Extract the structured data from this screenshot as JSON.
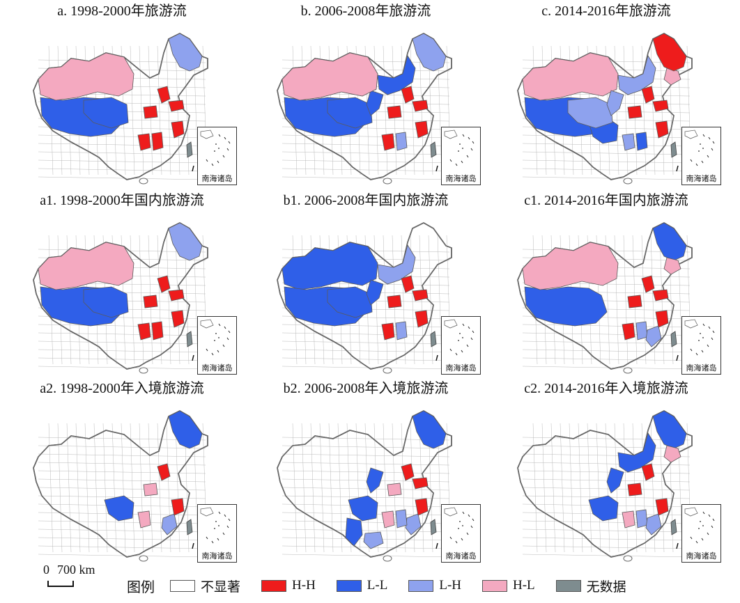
{
  "colors": {
    "not_significant": "#ffffff",
    "HH": "#ee1c1c",
    "LL": "#2f5fe8",
    "LH": "#8ea2ee",
    "HL": "#f4a9c0",
    "no_data": "#7e8c8f",
    "boundary": "#666666"
  },
  "panels": [
    {
      "title": "a. 1998-2000年旅游流",
      "pattern": "a"
    },
    {
      "title": "b. 2006-2008年旅游流",
      "pattern": "b"
    },
    {
      "title": "c. 2014-2016年旅游流",
      "pattern": "c"
    },
    {
      "title": "a1. 1998-2000年国内旅游流",
      "pattern": "a1"
    },
    {
      "title": "b1. 2006-2008年国内旅游流",
      "pattern": "b1"
    },
    {
      "title": "c1. 2014-2016年国内旅游流",
      "pattern": "c1"
    },
    {
      "title": "a2. 1998-2000年入境旅游流",
      "pattern": "a2"
    },
    {
      "title": "b2. 2006-2008年入境旅游流",
      "pattern": "b2"
    },
    {
      "title": "c2. 2014-2016年入境旅游流",
      "pattern": "c2"
    }
  ],
  "inset_label": "南海诸岛",
  "scale": {
    "zero": "0",
    "value": "700 km"
  },
  "legend": {
    "title": "图例",
    "items": [
      {
        "label": "不显著",
        "color_key": "not_significant"
      },
      {
        "label": "H-H",
        "color_key": "HH"
      },
      {
        "label": "L-L",
        "color_key": "LL"
      },
      {
        "label": "L-H",
        "color_key": "LH"
      },
      {
        "label": "H-L",
        "color_key": "HL"
      },
      {
        "label": "无数据",
        "color_key": "no_data"
      }
    ]
  }
}
